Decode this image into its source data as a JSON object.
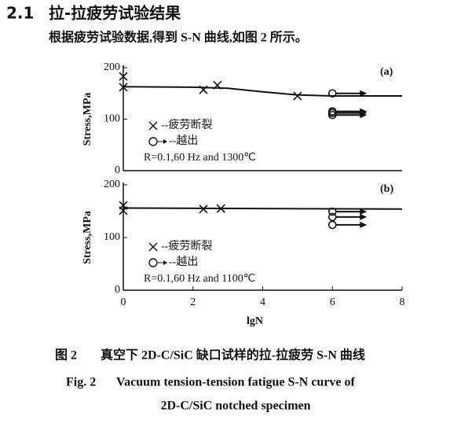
{
  "section": {
    "number": "2.1",
    "title": "拉-拉疲劳试验结果"
  },
  "paragraph": "根据疲劳试验数据,得到 S-N 曲线,如图 2 所示。",
  "chart_data": [
    {
      "type": "scatter",
      "panel_label": "(a)",
      "y_label": "Stress,MPa",
      "note": "R=0.1,60 Hz and 1300℃",
      "xlim": [
        0,
        8
      ],
      "ylim": [
        0,
        200
      ],
      "yticks": [
        0,
        100,
        200
      ],
      "series": [
        {
          "name": "--疲劳断裂",
          "marker": "x",
          "color": "#111",
          "x": [
            0,
            0,
            2.3,
            2.7,
            5
          ],
          "values": [
            183,
            162,
            157,
            166,
            145
          ]
        },
        {
          "name": "--越出",
          "marker": "runout",
          "color": "#111",
          "x": [
            6,
            6,
            6,
            6
          ],
          "values": [
            150,
            108,
            112,
            115
          ]
        },
        {
          "marker": "curve",
          "color": "#111",
          "x": [
            0,
            2,
            3,
            4,
            5,
            6,
            8
          ],
          "values": [
            163,
            162,
            160,
            153,
            147,
            145,
            145
          ]
        }
      ]
    },
    {
      "type": "scatter",
      "panel_label": "(b)",
      "y_label": "Stress,MPa",
      "x_label": "lgN",
      "note": "R=0.1,60 Hz and 1100℃",
      "xlim": [
        0,
        8
      ],
      "ylim": [
        0,
        200
      ],
      "xticks": [
        0,
        2,
        4,
        6,
        8
      ],
      "yticks": [
        0,
        100,
        200
      ],
      "series": [
        {
          "name": "--疲劳断裂",
          "marker": "x",
          "color": "#111",
          "x": [
            0,
            0,
            2.3,
            2.8
          ],
          "values": [
            161,
            151,
            154,
            155
          ]
        },
        {
          "name": "--越出",
          "marker": "runout",
          "color": "#111",
          "x": [
            6,
            6,
            6
          ],
          "values": [
            149,
            139,
            124
          ]
        },
        {
          "marker": "curve",
          "color": "#111",
          "x": [
            0,
            8
          ],
          "values": [
            156,
            154
          ]
        }
      ]
    }
  ],
  "caption": {
    "cn_label": "图 2",
    "cn": "真空下 2D-C/SiC 缺口试样的拉-拉疲劳 S-N 曲线",
    "en_label": "Fig. 2",
    "en_line1": "Vacuum tension-tension fatigue S-N curve of",
    "en_line2": "2D-C/SiC notched specimen"
  }
}
